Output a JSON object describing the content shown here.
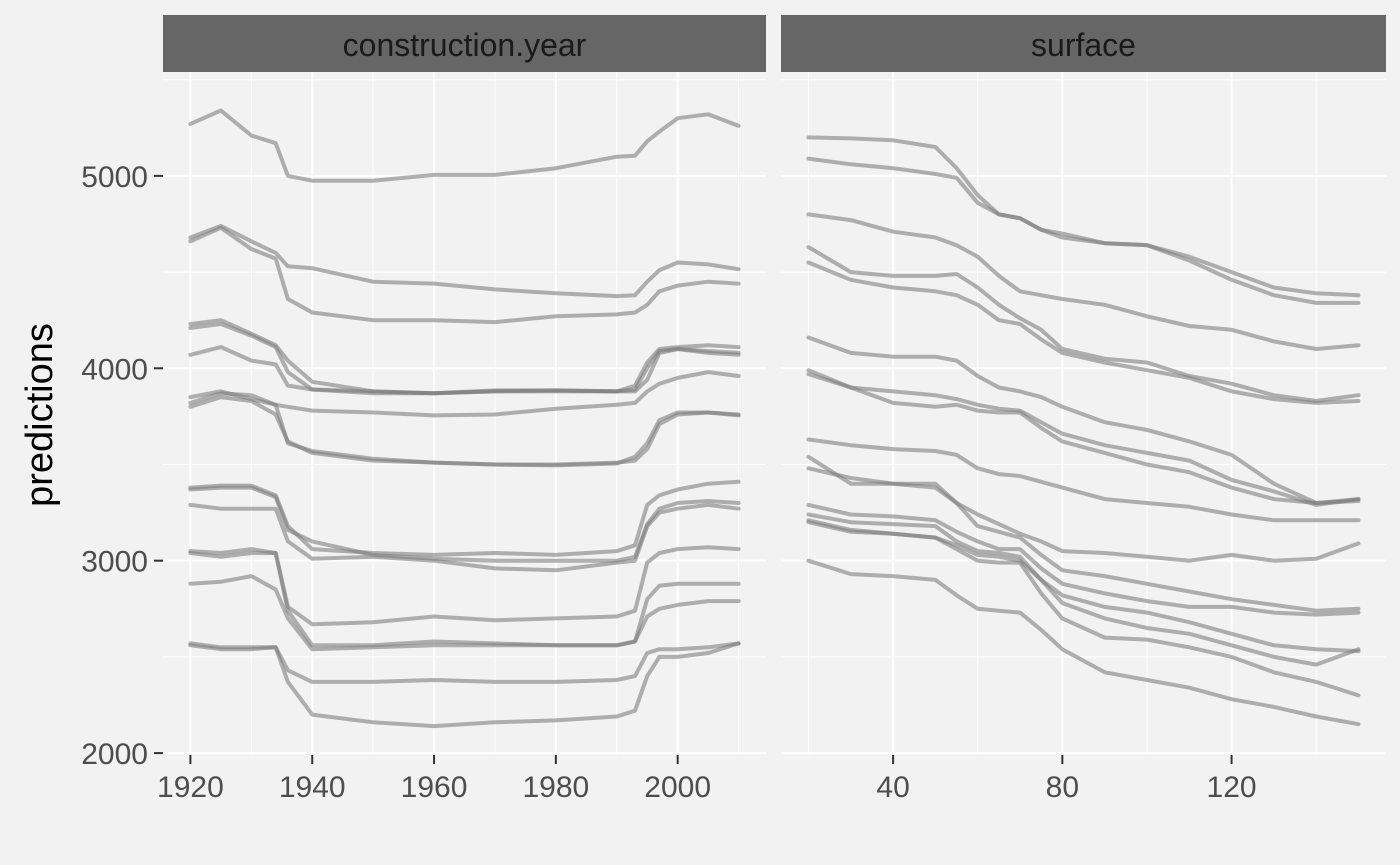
{
  "chart_data": {
    "type": "line",
    "ylabel": "predictions",
    "ylim": [
      1990,
      5540
    ],
    "y_ticks": [
      2000,
      3000,
      4000,
      5000
    ],
    "y_tick_labels": [
      "2000",
      "3000",
      "4000",
      "5000"
    ],
    "grid": true,
    "line_color": "#7f7f7f",
    "panels": [
      {
        "title": "construction.year",
        "xlim": [
          1915.5,
          2014.5
        ],
        "x_ticks": [
          1920,
          1940,
          1960,
          1980,
          2000
        ],
        "x_tick_labels": [
          "1920",
          "1940",
          "1960",
          "1980",
          "2000"
        ],
        "x_minor": [
          1930,
          1950,
          1970,
          1990,
          2010
        ],
        "x": [
          1920,
          1925,
          1930,
          1934,
          1936,
          1940,
          1950,
          1960,
          1970,
          1980,
          1990,
          1993,
          1995,
          1997,
          2000,
          2005,
          2010
        ],
        "series": [
          {
            "values": [
              5270,
              5340,
              5210,
              5170,
              5000,
              4975,
              4975,
              5005,
              5005,
              5040,
              5100,
              5105,
              5180,
              5230,
              5300,
              5320,
              5260
            ]
          },
          {
            "values": [
              4680,
              4740,
              4660,
              4600,
              4530,
              4520,
              4450,
              4440,
              4410,
              4390,
              4375,
              4380,
              4450,
              4510,
              4550,
              4540,
              4515
            ]
          },
          {
            "values": [
              4660,
              4730,
              4620,
              4570,
              4360,
              4290,
              4250,
              4250,
              4240,
              4270,
              4280,
              4290,
              4330,
              4400,
              4430,
              4450,
              4440
            ]
          },
          {
            "values": [
              4230,
              4250,
              4180,
              4120,
              4040,
              3930,
              3880,
              3870,
              3880,
              3885,
              3880,
              3890,
              4000,
              4090,
              4100,
              4090,
              4080
            ]
          },
          {
            "values": [
              4210,
              4230,
              4170,
              4110,
              3980,
              3890,
              3880,
              3870,
              3885,
              3885,
              3880,
              3910,
              4030,
              4100,
              4110,
              4120,
              4110
            ]
          },
          {
            "values": [
              4070,
              4110,
              4040,
              4020,
              3910,
              3890,
              3870,
              3870,
              3880,
              3880,
              3880,
              3880,
              3940,
              4080,
              4100,
              4080,
              4070
            ]
          },
          {
            "values": [
              3850,
              3880,
              3840,
              3810,
              3800,
              3780,
              3770,
              3755,
              3760,
              3790,
              3810,
              3820,
              3880,
              3920,
              3950,
              3980,
              3960
            ]
          },
          {
            "values": [
              3800,
              3850,
              3830,
              3760,
              3620,
              3560,
              3520,
              3510,
              3500,
              3500,
              3510,
              3520,
              3580,
              3710,
              3760,
              3770,
              3760
            ]
          },
          {
            "values": [
              3820,
              3870,
              3860,
              3810,
              3610,
              3570,
              3530,
              3510,
              3500,
              3495,
              3505,
              3540,
              3610,
              3730,
              3770,
              3770,
              3755
            ]
          },
          {
            "values": [
              3380,
              3390,
              3390,
              3340,
              3180,
              3060,
              3040,
              3030,
              3040,
              3030,
              3050,
              3080,
              3290,
              3340,
              3370,
              3400,
              3410
            ]
          },
          {
            "values": [
              3370,
              3380,
              3380,
              3330,
              3160,
              3100,
              3030,
              3010,
              3000,
              3000,
              3000,
              3020,
              3190,
              3270,
              3300,
              3310,
              3300
            ]
          },
          {
            "values": [
              3290,
              3270,
              3270,
              3270,
              3100,
              3010,
              3020,
              3000,
              2960,
              2950,
              2990,
              3000,
              3180,
              3250,
              3270,
              3290,
              3270
            ]
          },
          {
            "values": [
              3050,
              3040,
              3060,
              3040,
              2760,
              2670,
              2680,
              2710,
              2690,
              2700,
              2710,
              2740,
              2990,
              3040,
              3060,
              3070,
              3060
            ]
          },
          {
            "values": [
              3040,
              3020,
              3040,
              3040,
              2740,
              2560,
              2560,
              2580,
              2570,
              2560,
              2560,
              2580,
              2800,
              2870,
              2880,
              2880,
              2880
            ]
          },
          {
            "values": [
              2880,
              2890,
              2920,
              2850,
              2700,
              2540,
              2550,
              2560,
              2560,
              2560,
              2560,
              2580,
              2710,
              2750,
              2770,
              2790,
              2790
            ]
          },
          {
            "values": [
              2570,
              2550,
              2550,
              2550,
              2430,
              2370,
              2370,
              2380,
              2370,
              2370,
              2380,
              2400,
              2520,
              2540,
              2540,
              2550,
              2570
            ]
          },
          {
            "values": [
              2560,
              2540,
              2540,
              2550,
              2370,
              2200,
              2160,
              2140,
              2160,
              2170,
              2190,
              2220,
              2400,
              2500,
              2500,
              2520,
              2570
            ]
          }
        ]
      },
      {
        "title": "surface",
        "xlim": [
          13.5,
          156.5
        ],
        "x_ticks": [
          40,
          80,
          120
        ],
        "x_tick_labels": [
          "40",
          "80",
          "120"
        ],
        "x_minor": [
          20,
          60,
          100,
          140
        ],
        "x": [
          20,
          30,
          40,
          50,
          55,
          60,
          65,
          70,
          75,
          80,
          90,
          100,
          110,
          120,
          130,
          140,
          150
        ],
        "series": [
          {
            "values": [
              5200,
              5195,
              5185,
              5150,
              5040,
              4900,
              4800,
              4780,
              4720,
              4700,
              4650,
              4640,
              4580,
              4500,
              4420,
              4390,
              4380
            ]
          },
          {
            "values": [
              5090,
              5060,
              5040,
              5010,
              4990,
              4860,
              4800,
              4780,
              4720,
              4680,
              4650,
              4640,
              4560,
              4460,
              4380,
              4340,
              4340
            ]
          },
          {
            "values": [
              4800,
              4770,
              4710,
              4680,
              4640,
              4580,
              4480,
              4400,
              4380,
              4360,
              4330,
              4270,
              4220,
              4200,
              4140,
              4100,
              4120
            ]
          },
          {
            "values": [
              4630,
              4500,
              4480,
              4480,
              4490,
              4420,
              4330,
              4260,
              4200,
              4100,
              4050,
              4030,
              3960,
              3920,
              3860,
              3830,
              3860
            ]
          },
          {
            "values": [
              4550,
              4460,
              4420,
              4400,
              4380,
              4330,
              4250,
              4230,
              4150,
              4080,
              4030,
              3990,
              3950,
              3880,
              3840,
              3820,
              3830
            ]
          },
          {
            "values": [
              4160,
              4080,
              4060,
              4060,
              4040,
              3960,
              3900,
              3880,
              3850,
              3800,
              3720,
              3680,
              3620,
              3550,
              3400,
              3300,
              3320
            ]
          },
          {
            "values": [
              3990,
              3900,
              3880,
              3860,
              3840,
              3810,
              3790,
              3780,
              3720,
              3660,
              3600,
              3560,
              3520,
              3420,
              3360,
              3290,
              3320
            ]
          },
          {
            "values": [
              3970,
              3900,
              3820,
              3800,
              3810,
              3780,
              3770,
              3770,
              3690,
              3620,
              3560,
              3500,
              3460,
              3380,
              3320,
              3300,
              3310
            ]
          },
          {
            "values": [
              3630,
              3600,
              3580,
              3570,
              3550,
              3480,
              3450,
              3440,
              3410,
              3380,
              3320,
              3300,
              3280,
              3240,
              3210,
              3210,
              3210
            ]
          },
          {
            "values": [
              3540,
              3400,
              3400,
              3380,
              3300,
              3240,
              3190,
              3140,
              3100,
              3050,
              3040,
              3020,
              3000,
              3030,
              3000,
              3010,
              3090
            ]
          },
          {
            "values": [
              3480,
              3430,
              3400,
              3400,
              3300,
              3180,
              3150,
              3120,
              3030,
              2950,
              2920,
              2880,
              2840,
              2800,
              2770,
              2740,
              2750
            ]
          },
          {
            "values": [
              3290,
              3240,
              3230,
              3210,
              3150,
              3100,
              3060,
              3060,
              2960,
              2880,
              2830,
              2790,
              2760,
              2760,
              2730,
              2720,
              2730
            ]
          },
          {
            "values": [
              3240,
              3200,
              3190,
              3180,
              3100,
              3050,
              3040,
              3020,
              2900,
              2820,
              2760,
              2730,
              2680,
              2620,
              2560,
              2540,
              2530
            ]
          },
          {
            "values": [
              3210,
              3160,
              3140,
              3120,
              3060,
              3000,
              2990,
              2990,
              2830,
              2700,
              2600,
              2590,
              2550,
              2500,
              2420,
              2370,
              2300
            ]
          },
          {
            "values": [
              3200,
              3150,
              3140,
              3120,
              3080,
              3030,
              3020,
              3000,
              2900,
              2780,
              2700,
              2650,
              2620,
              2560,
              2500,
              2460,
              2540
            ]
          },
          {
            "values": [
              3000,
              2930,
              2920,
              2900,
              2820,
              2750,
              2740,
              2730,
              2640,
              2540,
              2420,
              2380,
              2340,
              2280,
              2240,
              2190,
              2150
            ]
          }
        ]
      }
    ]
  }
}
